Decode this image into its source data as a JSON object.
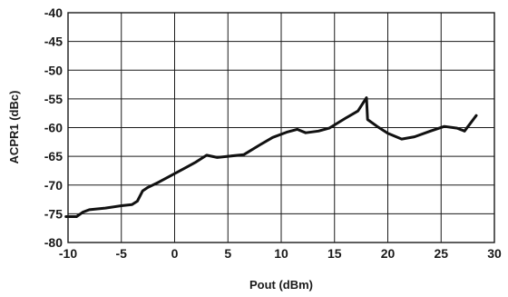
{
  "chart_data": {
    "type": "line",
    "title": "",
    "xlabel": "Pout (dBm)",
    "ylabel": "ACPR1 (dBc)",
    "xlim": [
      -10,
      30
    ],
    "ylim": [
      -80,
      -40
    ],
    "xticks": [
      -10,
      -5,
      0,
      5,
      10,
      15,
      20,
      25,
      30
    ],
    "yticks": [
      -40,
      -45,
      -50,
      -55,
      -60,
      -65,
      -70,
      -75,
      -80
    ],
    "xtick_labels": [
      "-10",
      "-5",
      "0",
      "5",
      "10",
      "15",
      "20",
      "25",
      "30"
    ],
    "ytick_labels": [
      "-40",
      "-45",
      "-50",
      "-55",
      "-60",
      "-65",
      "-70",
      "-75",
      "-80"
    ],
    "grid": true,
    "legend": "none",
    "series": [
      {
        "color": "#111111",
        "points": [
          [
            -10.2,
            -75.5
          ],
          [
            -9.2,
            -75.5
          ],
          [
            -8.6,
            -74.7
          ],
          [
            -8.0,
            -74.3
          ],
          [
            -6.5,
            -74.0
          ],
          [
            -5.0,
            -73.6
          ],
          [
            -4.0,
            -73.4
          ],
          [
            -3.5,
            -72.8
          ],
          [
            -3.0,
            -71.0
          ],
          [
            -2.5,
            -70.4
          ],
          [
            -1.5,
            -69.5
          ],
          [
            -0.5,
            -68.5
          ],
          [
            1.0,
            -67.0
          ],
          [
            2.0,
            -66.0
          ],
          [
            3.0,
            -64.8
          ],
          [
            4.0,
            -65.2
          ],
          [
            5.0,
            -65.0
          ],
          [
            6.5,
            -64.7
          ],
          [
            8.0,
            -63.0
          ],
          [
            9.2,
            -61.7
          ],
          [
            10.5,
            -60.8
          ],
          [
            11.5,
            -60.3
          ],
          [
            12.3,
            -60.9
          ],
          [
            13.5,
            -60.6
          ],
          [
            14.5,
            -60.1
          ],
          [
            16.0,
            -58.4
          ],
          [
            17.2,
            -57.1
          ],
          [
            18.0,
            -54.8
          ],
          [
            18.1,
            -58.6
          ],
          [
            19.0,
            -59.8
          ],
          [
            20.0,
            -61.0
          ],
          [
            21.3,
            -62.0
          ],
          [
            22.5,
            -61.6
          ],
          [
            24.0,
            -60.6
          ],
          [
            25.3,
            -59.8
          ],
          [
            26.5,
            -60.1
          ],
          [
            27.2,
            -60.6
          ],
          [
            28.3,
            -57.9
          ]
        ]
      }
    ]
  }
}
